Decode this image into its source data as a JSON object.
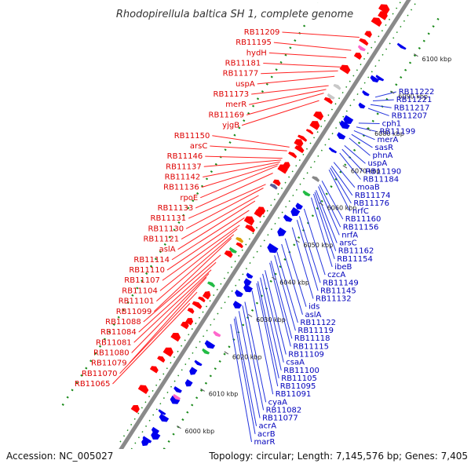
{
  "title": "Rhodopirellula baltica SH 1, complete genome",
  "accession": "Accession: NC_005027",
  "topology": "Topology: circular; Length: 7,145,576 bp; Genes: 7,405",
  "colors": {
    "backbone": "#8a8a8a",
    "forward_strand": "#ff0000",
    "reverse_strand": "#0000ee",
    "left_label": "#dd0000",
    "right_label": "#0000bb",
    "leader_left": "#ff2222",
    "leader_right": "#2233dd",
    "dotted_guide": "#1a8a1a"
  },
  "ticks": [
    {
      "label": "6000 kbp",
      "value": 6000
    },
    {
      "label": "6010 kbp",
      "value": 6010
    },
    {
      "label": "6020 kbp",
      "value": 6020
    },
    {
      "label": "6030 kbp",
      "value": 6030
    },
    {
      "label": "6040 kbp",
      "value": 6040
    },
    {
      "label": "6050 kbp",
      "value": 6050
    },
    {
      "label": "6060 kbp",
      "value": 6060
    },
    {
      "label": "6070 kbp",
      "value": 6070
    },
    {
      "label": "6080 kbp",
      "value": 6080
    },
    {
      "label": "6090 kbp",
      "value": 6090
    },
    {
      "label": "6100 kbp",
      "value": 6100
    }
  ],
  "left_labels": [
    {
      "text": "RB11209",
      "pos": 6096.5
    },
    {
      "text": "RB11195",
      "pos": 6093.0
    },
    {
      "text": "hydH",
      "pos": 6091.0
    },
    {
      "text": "RB11181",
      "pos": 6088.5
    },
    {
      "text": "RB11177",
      "pos": 6087.5
    },
    {
      "text": "uspA",
      "pos": 6086.0
    },
    {
      "text": "RB11173",
      "pos": 6083.5
    },
    {
      "text": "merR",
      "pos": 6082.5
    },
    {
      "text": "RB11169",
      "pos": 6081.5
    },
    {
      "text": "yjgB",
      "pos": 6079.5
    },
    {
      "text": "RB11150",
      "pos": 6067.0
    },
    {
      "text": "arsC",
      "pos": 6066.0
    },
    {
      "text": "RB11137",
      "pos": 6063.5
    },
    {
      "text": "RB11136",
      "pos": 6062.5
    },
    {
      "text": "RB11142",
      "pos": 6063.0
    },
    {
      "text": "rpoE",
      "pos": 6062.0
    },
    {
      "text": "RB11146",
      "pos": 6064.0
    },
    {
      "text": "RB11133",
      "pos": 6060.0
    },
    {
      "text": "RB11131",
      "pos": 6057.0
    },
    {
      "text": "RB11130",
      "pos": 6056.0
    },
    {
      "text": "RB11121",
      "pos": 6054.0
    },
    {
      "text": "aslA",
      "pos": 6052.5
    },
    {
      "text": "RB11110",
      "pos": 6048.0
    },
    {
      "text": "RB11114",
      "pos": 6050.0
    },
    {
      "text": "RB11107",
      "pos": 6046.0
    },
    {
      "text": "RB11104",
      "pos": 6045.0
    },
    {
      "text": "RB11101",
      "pos": 6043.5
    },
    {
      "text": "RB11099",
      "pos": 6042.5
    },
    {
      "text": "RB11088",
      "pos": 6038.0
    },
    {
      "text": "RB11084",
      "pos": 6036.0
    },
    {
      "text": "RB11081",
      "pos": 6034.0
    },
    {
      "text": "RB11080",
      "pos": 6033.0
    },
    {
      "text": "RB11079",
      "pos": 6032.0
    },
    {
      "text": "RB11070",
      "pos": 6028.0
    },
    {
      "text": "RB11065",
      "pos": 6025.0
    }
  ],
  "right_labels": [
    {
      "text": "RB11222",
      "pos": 6087.0
    },
    {
      "text": "RB11221",
      "pos": 6086.0
    },
    {
      "text": "RB11217",
      "pos": 6085.0
    },
    {
      "text": "RB11207",
      "pos": 6084.0
    },
    {
      "text": "cph1",
      "pos": 6080.0
    },
    {
      "text": "RB11199",
      "pos": 6079.0
    },
    {
      "text": "merA",
      "pos": 6078.0
    },
    {
      "text": "sasR",
      "pos": 6077.0
    },
    {
      "text": "phnA",
      "pos": 6076.0
    },
    {
      "text": "uspA",
      "pos": 6074.0
    },
    {
      "text": "RB11190",
      "pos": 6073.0
    },
    {
      "text": "RB11184",
      "pos": 6072.0
    },
    {
      "text": "moaB",
      "pos": 6069.5
    },
    {
      "text": "RB11174",
      "pos": 6068.5
    },
    {
      "text": "nrfC",
      "pos": 6067.5
    },
    {
      "text": "RB11176",
      "pos": 6068.0
    },
    {
      "text": "RB11160",
      "pos": 6064.5
    },
    {
      "text": "RB11156",
      "pos": 6063.5
    },
    {
      "text": "nrfA",
      "pos": 6063.0
    },
    {
      "text": "arsC",
      "pos": 6062.0
    },
    {
      "text": "RB11154",
      "pos": 6061.0
    },
    {
      "text": "RB11162",
      "pos": 6061.5
    },
    {
      "text": "ibeB",
      "pos": 6060.0
    },
    {
      "text": "czcA",
      "pos": 6057.0
    },
    {
      "text": "RB11149",
      "pos": 6055.0
    },
    {
      "text": "RB11145",
      "pos": 6054.0
    },
    {
      "text": "RB11132",
      "pos": 6052.0
    },
    {
      "text": "ids",
      "pos": 6049.0
    },
    {
      "text": "aslA",
      "pos": 6047.5
    },
    {
      "text": "RB11122",
      "pos": 6045.5
    },
    {
      "text": "RB11119",
      "pos": 6044.5
    },
    {
      "text": "RB11115",
      "pos": 6042.5
    },
    {
      "text": "RB11118",
      "pos": 6043.0
    },
    {
      "text": "RB11109",
      "pos": 6040.5
    },
    {
      "text": "csaA",
      "pos": 6039.5
    },
    {
      "text": "RB11100",
      "pos": 6038.5
    },
    {
      "text": "RB11095",
      "pos": 6037.0
    },
    {
      "text": "RB11105",
      "pos": 6037.5
    },
    {
      "text": "RB11091",
      "pos": 6035.0
    },
    {
      "text": "cyaA",
      "pos": 6032.0
    },
    {
      "text": "RB11082",
      "pos": 6031.0
    },
    {
      "text": "RB11077",
      "pos": 6029.5
    },
    {
      "text": "acrA",
      "pos": 6028.0
    },
    {
      "text": "acrB",
      "pos": 6027.5
    },
    {
      "text": "marR",
      "pos": 6026.0
    }
  ]
}
